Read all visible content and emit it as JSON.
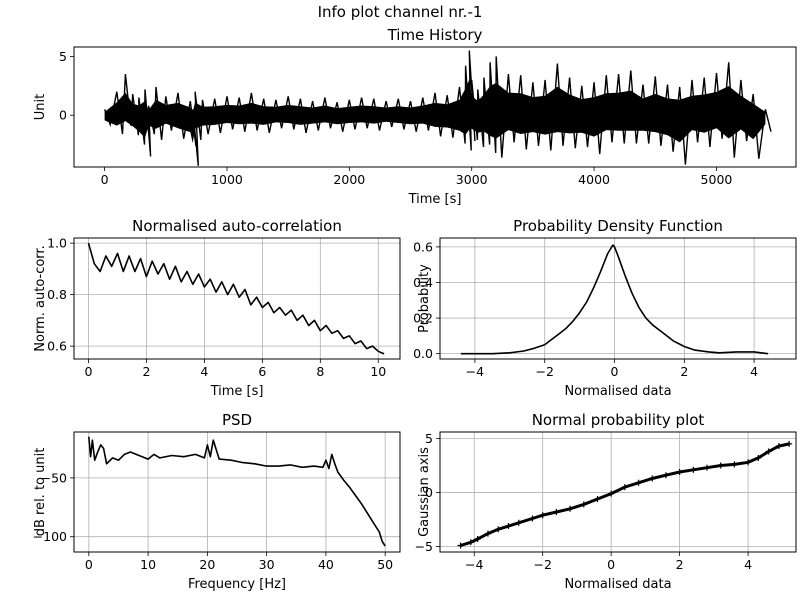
{
  "figure": {
    "suptitle": "Info plot channel nr.-1"
  },
  "chart_data": [
    {
      "id": "time_history",
      "type": "line",
      "title": "Time History",
      "xlabel": "Time [s]",
      "ylabel": "Unit",
      "xlim": [
        -250,
        5650
      ],
      "ylim": [
        -4.4,
        5.8
      ],
      "xticks": [
        0,
        1000,
        2000,
        3000,
        4000,
        5000
      ],
      "xtick_labels": [
        "0",
        "1000",
        "2000",
        "3000",
        "4000",
        "5000"
      ],
      "yticks": [
        0,
        5
      ],
      "ytick_labels": [
        "0",
        "5"
      ],
      "grid": false,
      "series": [
        {
          "color": "#000000",
          "x": [
            0,
            100,
            170,
            230,
            280,
            330,
            360,
            420,
            500,
            600,
            700,
            720,
            740,
            800,
            900,
            1000,
            1100,
            1200,
            1300,
            1400,
            1500,
            1600,
            1700,
            1800,
            1900,
            2000,
            2100,
            2200,
            2300,
            2400,
            2500,
            2600,
            2700,
            2800,
            2900,
            2950,
            2980,
            3000,
            3050,
            3100,
            3150,
            3200,
            3300,
            3400,
            3500,
            3600,
            3700,
            3800,
            3900,
            4000,
            4100,
            4200,
            4300,
            4400,
            4500,
            4600,
            4700,
            4800,
            4900,
            5000,
            5100,
            5200,
            5300,
            5400
          ],
          "upper": [
            0.5,
            2.0,
            3.5,
            1.8,
            1.5,
            2.2,
            0.8,
            2.4,
            1.6,
            1.9,
            1.2,
            0.5,
            2.0,
            1.3,
            1.4,
            1.6,
            1.5,
            1.9,
            1.4,
            1.3,
            1.6,
            1.4,
            1.2,
            1.5,
            1.1,
            1.3,
            1.5,
            1.4,
            1.2,
            1.4,
            1.2,
            1.5,
            1.9,
            1.7,
            2.4,
            4.2,
            5.5,
            3.0,
            2.2,
            3.2,
            4.5,
            5.0,
            3.5,
            3.4,
            2.8,
            3.0,
            4.4,
            3.2,
            2.5,
            2.8,
            3.4,
            3.5,
            3.8,
            2.6,
            3.3,
            2.6,
            2.4,
            3.0,
            3.2,
            3.6,
            4.5,
            3.0,
            1.8,
            0.5
          ],
          "lower": [
            -0.8,
            -1.6,
            -0.9,
            -1.7,
            -2.5,
            -3.5,
            -1.6,
            -2.1,
            -1.3,
            -2.0,
            -2.6,
            -4.3,
            -2.1,
            -1.6,
            -1.5,
            -1.2,
            -1.4,
            -1.3,
            -1.5,
            -1.1,
            -1.2,
            -1.5,
            -1.3,
            -1.1,
            -1.4,
            -1.2,
            -1.1,
            -1.3,
            -1.0,
            -1.2,
            -1.4,
            -1.3,
            -1.8,
            -1.9,
            -2.4,
            -3.0,
            -2.2,
            -2.1,
            -2.7,
            -2.5,
            -3.2,
            -3.6,
            -2.3,
            -2.9,
            -2.6,
            -3.0,
            -2.6,
            -2.8,
            -2.7,
            -3.3,
            -2.3,
            -2.4,
            -2.4,
            -2.4,
            -2.6,
            -3.1,
            -4.2,
            -2.3,
            -2.7,
            -2.0,
            -3.6,
            -2.2,
            -3.7,
            -1.4
          ]
        }
      ]
    },
    {
      "id": "autocorrelation",
      "type": "line",
      "title": "Normalised auto-correlation",
      "xlabel": "Time [s]",
      "ylabel": "Norm. auto-corr.",
      "xlim": [
        -0.5,
        10.75
      ],
      "ylim": [
        0.55,
        1.02
      ],
      "xticks": [
        0,
        2,
        4,
        6,
        8,
        10
      ],
      "xtick_labels": [
        "0",
        "2",
        "4",
        "6",
        "8",
        "10"
      ],
      "yticks": [
        0.6,
        0.8,
        1.0
      ],
      "ytick_labels": [
        "0.6",
        "0.8",
        "1.0"
      ],
      "grid": true,
      "series": [
        {
          "color": "#000000",
          "x": [
            0,
            0.2,
            0.4,
            0.6,
            0.8,
            1.0,
            1.2,
            1.4,
            1.6,
            1.8,
            2.0,
            2.2,
            2.4,
            2.6,
            2.8,
            3.0,
            3.2,
            3.4,
            3.6,
            3.8,
            4.0,
            4.2,
            4.4,
            4.6,
            4.8,
            5.0,
            5.2,
            5.4,
            5.6,
            5.8,
            6.0,
            6.2,
            6.4,
            6.6,
            6.8,
            7.0,
            7.2,
            7.4,
            7.6,
            7.8,
            8.0,
            8.2,
            8.4,
            8.6,
            8.8,
            9.0,
            9.2,
            9.4,
            9.6,
            9.8,
            10.0,
            10.2
          ],
          "y": [
            1.0,
            0.92,
            0.89,
            0.95,
            0.91,
            0.96,
            0.89,
            0.95,
            0.89,
            0.94,
            0.87,
            0.93,
            0.88,
            0.92,
            0.86,
            0.91,
            0.85,
            0.89,
            0.84,
            0.88,
            0.83,
            0.86,
            0.81,
            0.85,
            0.8,
            0.84,
            0.79,
            0.82,
            0.76,
            0.79,
            0.75,
            0.77,
            0.73,
            0.75,
            0.72,
            0.74,
            0.7,
            0.72,
            0.68,
            0.7,
            0.66,
            0.68,
            0.65,
            0.66,
            0.63,
            0.64,
            0.61,
            0.62,
            0.59,
            0.6,
            0.58,
            0.57
          ]
        }
      ]
    },
    {
      "id": "pdf",
      "type": "line",
      "title": "Probability Density Function",
      "xlabel": "Normalised data",
      "ylabel": "Probability",
      "xlim": [
        -5.0,
        5.2
      ],
      "ylim": [
        -0.03,
        0.65
      ],
      "xticks": [
        -4,
        -2,
        0,
        2,
        4
      ],
      "xtick_labels": [
        "−4",
        "−2",
        "0",
        "2",
        "4"
      ],
      "yticks": [
        0.0,
        0.2,
        0.4,
        0.6
      ],
      "ytick_labels": [
        "0.0",
        "0.2",
        "0.4",
        "0.6"
      ],
      "grid": true,
      "series": [
        {
          "color": "#000000",
          "x": [
            -4.4,
            -3.5,
            -3.0,
            -2.6,
            -2.3,
            -2.0,
            -1.8,
            -1.6,
            -1.4,
            -1.2,
            -1.0,
            -0.8,
            -0.6,
            -0.4,
            -0.2,
            -0.05,
            0.0,
            0.1,
            0.3,
            0.5,
            0.7,
            0.9,
            1.1,
            1.3,
            1.5,
            1.7,
            2.0,
            2.3,
            2.7,
            3.0,
            3.5,
            4.0,
            4.4
          ],
          "y": [
            0.0,
            0.0,
            0.005,
            0.015,
            0.03,
            0.05,
            0.08,
            0.11,
            0.14,
            0.18,
            0.23,
            0.29,
            0.37,
            0.46,
            0.56,
            0.61,
            0.6,
            0.55,
            0.44,
            0.34,
            0.26,
            0.2,
            0.16,
            0.13,
            0.1,
            0.07,
            0.04,
            0.02,
            0.01,
            0.005,
            0.01,
            0.01,
            0.0
          ]
        }
      ]
    },
    {
      "id": "psd",
      "type": "line",
      "title": "PSD",
      "xlabel": "Frequency [Hz]",
      "ylabel": "dB rel. to unit",
      "xlim": [
        -2.5,
        52.5
      ],
      "ylim": [
        -113,
        -11
      ],
      "xticks": [
        0,
        10,
        20,
        30,
        40,
        50
      ],
      "xtick_labels": [
        "0",
        "10",
        "20",
        "30",
        "40",
        "50"
      ],
      "yticks": [
        -100,
        -50
      ],
      "ytick_labels": [
        "−100",
        "−50"
      ],
      "grid": true,
      "series": [
        {
          "color": "#000000",
          "x": [
            0,
            0.3,
            0.6,
            1,
            1.5,
            2,
            2.5,
            3,
            4,
            5,
            6,
            7,
            8,
            9,
            10,
            11,
            12,
            14,
            16,
            18,
            19.5,
            20,
            20.5,
            21,
            22,
            24,
            26,
            28,
            30,
            32,
            34,
            36,
            38,
            39.5,
            40,
            40.5,
            41,
            41.5,
            42,
            43,
            44,
            45,
            46,
            47,
            48,
            49,
            49.5,
            50
          ],
          "y": [
            -15,
            -32,
            -18,
            -35,
            -28,
            -22,
            -25,
            -38,
            -33,
            -35,
            -30,
            -28,
            -30,
            -32,
            -34,
            -30,
            -33,
            -31,
            -32,
            -30,
            -33,
            -22,
            -32,
            -18,
            -34,
            -35,
            -37,
            -38,
            -40,
            -40,
            -39,
            -41,
            -40,
            -41,
            -35,
            -42,
            -30,
            -38,
            -45,
            -52,
            -58,
            -65,
            -72,
            -80,
            -88,
            -96,
            -104,
            -108
          ]
        }
      ]
    },
    {
      "id": "normal_probability",
      "type": "scatter",
      "title": "Normal probability plot",
      "xlabel": "Normalised data",
      "ylabel": "Gaussian axis",
      "xlim": [
        -5.0,
        5.4
      ],
      "ylim": [
        -5.5,
        5.6
      ],
      "xticks": [
        -4,
        -2,
        0,
        2,
        4
      ],
      "xtick_labels": [
        "−4",
        "−2",
        "0",
        "2",
        "4"
      ],
      "yticks": [
        -5,
        0,
        5
      ],
      "ytick_labels": [
        "−5",
        "0",
        "5"
      ],
      "grid": true,
      "series": [
        {
          "color": "#000000",
          "marker": "+",
          "x": [
            -4.4,
            -4.1,
            -3.9,
            -3.6,
            -3.3,
            -3.0,
            -2.7,
            -2.3,
            -2.0,
            -1.6,
            -1.2,
            -0.8,
            -0.4,
            0.0,
            0.4,
            0.8,
            1.2,
            1.6,
            2.0,
            2.4,
            2.8,
            3.2,
            3.6,
            4.0,
            4.3,
            4.6,
            4.9,
            5.2
          ],
          "y": [
            -4.9,
            -4.6,
            -4.3,
            -3.8,
            -3.4,
            -3.1,
            -2.8,
            -2.4,
            -2.1,
            -1.8,
            -1.5,
            -1.1,
            -0.6,
            -0.1,
            0.5,
            0.9,
            1.3,
            1.6,
            1.9,
            2.1,
            2.3,
            2.5,
            2.6,
            2.8,
            3.2,
            3.8,
            4.3,
            4.5
          ]
        }
      ]
    }
  ]
}
